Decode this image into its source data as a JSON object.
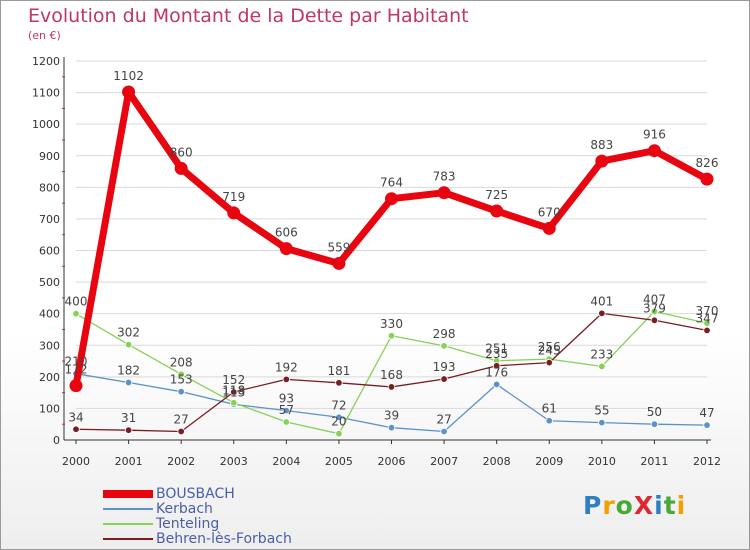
{
  "header": {
    "title": "Evolution du Montant de la Dette par Habitant",
    "subtitle": "(en €)"
  },
  "logo": {
    "text": "ProXiti",
    "colors": [
      "#2d7fc1",
      "#f2a000",
      "#48a83a",
      "#e0262e",
      "#2d7fc1",
      "#48a83a",
      "#f2a000"
    ]
  },
  "chart_data": {
    "type": "line",
    "x": [
      "2000",
      "2001",
      "2002",
      "2003",
      "2004",
      "2005",
      "2006",
      "2007",
      "2008",
      "2009",
      "2010",
      "2011",
      "2012"
    ],
    "ylim": [
      0,
      1200
    ],
    "yticks": [
      "0",
      "100",
      "200",
      "300",
      "400",
      "500",
      "600",
      "700",
      "800",
      "900",
      "1000",
      "1100",
      "1200"
    ],
    "grid": "horizontal",
    "legend": "bottom-left",
    "series": [
      {
        "name": "BOUSBACH",
        "color": "#e8050f",
        "values": [
          172,
          1102,
          860,
          719,
          606,
          559,
          764,
          783,
          725,
          670,
          883,
          916,
          826
        ]
      },
      {
        "name": "Kerbach",
        "color": "#5b93c8",
        "values": [
          210,
          182,
          153,
          113,
          93,
          72,
          39,
          27,
          176,
          61,
          55,
          50,
          47
        ]
      },
      {
        "name": "Tenteling",
        "color": "#86d157",
        "values": [
          400,
          302,
          208,
          118,
          57,
          20,
          330,
          298,
          251,
          256,
          233,
          407,
          370
        ]
      },
      {
        "name": "Behren-lès-Forbach",
        "color": "#7a1c22",
        "values": [
          34,
          31,
          27,
          152,
          192,
          181,
          168,
          193,
          235,
          245,
          401,
          379,
          347
        ]
      }
    ],
    "data_labels": [
      {
        "series": 0,
        "labels": [
          "172",
          "1102",
          "860",
          "719",
          "606",
          "559",
          "764",
          "783",
          "725",
          "670",
          "883",
          "916",
          "826"
        ]
      },
      {
        "series": 1,
        "labels": [
          "210",
          "182",
          "153",
          "113",
          "93",
          "72",
          "39",
          "27",
          "176",
          "61",
          "55",
          "50",
          "47"
        ]
      },
      {
        "series": 2,
        "labels": [
          "400",
          "302",
          "208",
          "118",
          "57",
          "20",
          "330",
          "298",
          "251",
          "256",
          "233",
          "407",
          "370"
        ]
      },
      {
        "series": 3,
        "labels": [
          "34",
          "31",
          "27",
          "152",
          "192",
          "181",
          "168",
          "193",
          "235",
          "245",
          "401",
          "379",
          "347"
        ]
      }
    ]
  }
}
